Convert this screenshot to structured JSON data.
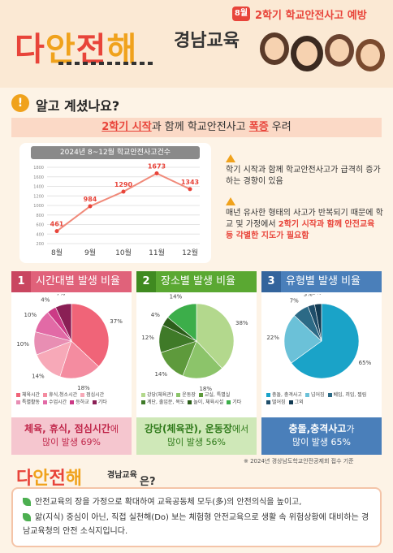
{
  "header": {
    "logo": [
      "다",
      "안",
      "전",
      "해"
    ],
    "logo_sub": "경남교육",
    "month_badge": "8월",
    "title": "2학기 학교안전사고 예방"
  },
  "section": {
    "heading": "알고 계셨나요?",
    "banner_pre": "",
    "banner_hl1": "2학기 시작",
    "banner_mid": "과 함께 학교안전사고 ",
    "banner_hl2": "폭증",
    "banner_post": " 우려"
  },
  "notes": {
    "note1": "학기 시작과 함께 학교안전사고가 급격히 증가하는 경향이 있음",
    "note2_pre": "매년 유사한 형태의 사고가 반복되기 때문에 학교 및 가정에서 ",
    "note2_hl": "2학기 시작과 함께 안전교육 등 각별한 지도가 필요함"
  },
  "colors": {
    "accent_red": "#e8443a",
    "accent_orange": "#f0a21c",
    "panel1": "#e0627a",
    "panel2": "#5aa832",
    "panel3": "#4a7fba"
  },
  "chart_data": [
    {
      "type": "line",
      "title": "2024년 8~12월 학교안전사고건수",
      "categories": [
        "8월",
        "9월",
        "10월",
        "11월",
        "12월"
      ],
      "values": [
        461,
        984,
        1290,
        1673,
        1343
      ],
      "y_ticks": [
        200,
        400,
        600,
        800,
        1000,
        1200,
        1400,
        1600,
        1800
      ],
      "ylim": [
        200,
        1800
      ],
      "grid": true
    },
    {
      "type": "pie",
      "panel_num": "1",
      "title": "시간대별 발생 비율",
      "labels": [
        "체육시간",
        "휴식,청소시간",
        "점심시간",
        "특별활동",
        "수업시간",
        "등하교",
        "기타"
      ],
      "values": [
        37,
        18,
        14,
        10,
        10,
        4,
        7
      ],
      "value_labels": [
        "37%",
        "18%",
        "14%",
        "10%",
        "10%",
        "4%",
        "7%"
      ],
      "colors": [
        "#f06478",
        "#f48ca0",
        "#f7a9b8",
        "#e88eb3",
        "#e26aa6",
        "#cc3a86",
        "#8a1f55"
      ],
      "foot_bold": "체육, 휴식, 점심시간",
      "foot_mid": "에",
      "foot_line2": "많이 발생 69%"
    },
    {
      "type": "pie",
      "panel_num": "2",
      "title": "장소별 발생 비율",
      "labels": [
        "강당(체육관)",
        "운동장",
        "교실, 특별실",
        "계단, 출입문, 복도",
        "놀이, 체육시설",
        "기타"
      ],
      "values": [
        38,
        18,
        14,
        12,
        4,
        14
      ],
      "value_labels": [
        "38%",
        "18%",
        "14%",
        "12%",
        "4%",
        "14%"
      ],
      "colors": [
        "#b3d88d",
        "#8cc46a",
        "#5e9a3c",
        "#3f7a28",
        "#2c5e1a",
        "#3cae4a"
      ],
      "foot_bold": "강당(체육관), 운동장",
      "foot_mid": "에서",
      "foot_line2": "많이 발생 56%"
    },
    {
      "type": "pie",
      "panel_num": "3",
      "title": "유형별 발생 비율",
      "labels": [
        "충돌, 충격사고",
        "넘어짐",
        "베임, 끼임, 찔림",
        "떨어짐",
        "그외"
      ],
      "values": [
        65,
        22,
        7,
        3,
        3
      ],
      "value_labels": [
        "65%",
        "22%",
        "7%",
        "3%",
        "3%"
      ],
      "colors": [
        "#1aa3c8",
        "#6bc1d8",
        "#2c6a86",
        "#1f4e6a",
        "#123a52"
      ],
      "foot_bold": "충돌,충격사고",
      "foot_mid": "가",
      "foot_line2": "많이 발생 65%"
    }
  ],
  "source": "※ 2024년 경상남도학교안전공제회 접수 기준",
  "bottom": {
    "logo": [
      "다",
      "안",
      "전",
      "해"
    ],
    "logo_sub": "경남교육",
    "question": "은?",
    "line1": "안전교육의 장을 가정으로 확대하여 교육공동체 모두(多)의 안전의식을 높이고,",
    "line2": "앎(지식) 중심이 아닌, 직접 실천해(Do) 보는 체험형 안전교육으로 생활 속 위험상황에 대비하는 경남교육청의 안전 소식지입니다."
  }
}
